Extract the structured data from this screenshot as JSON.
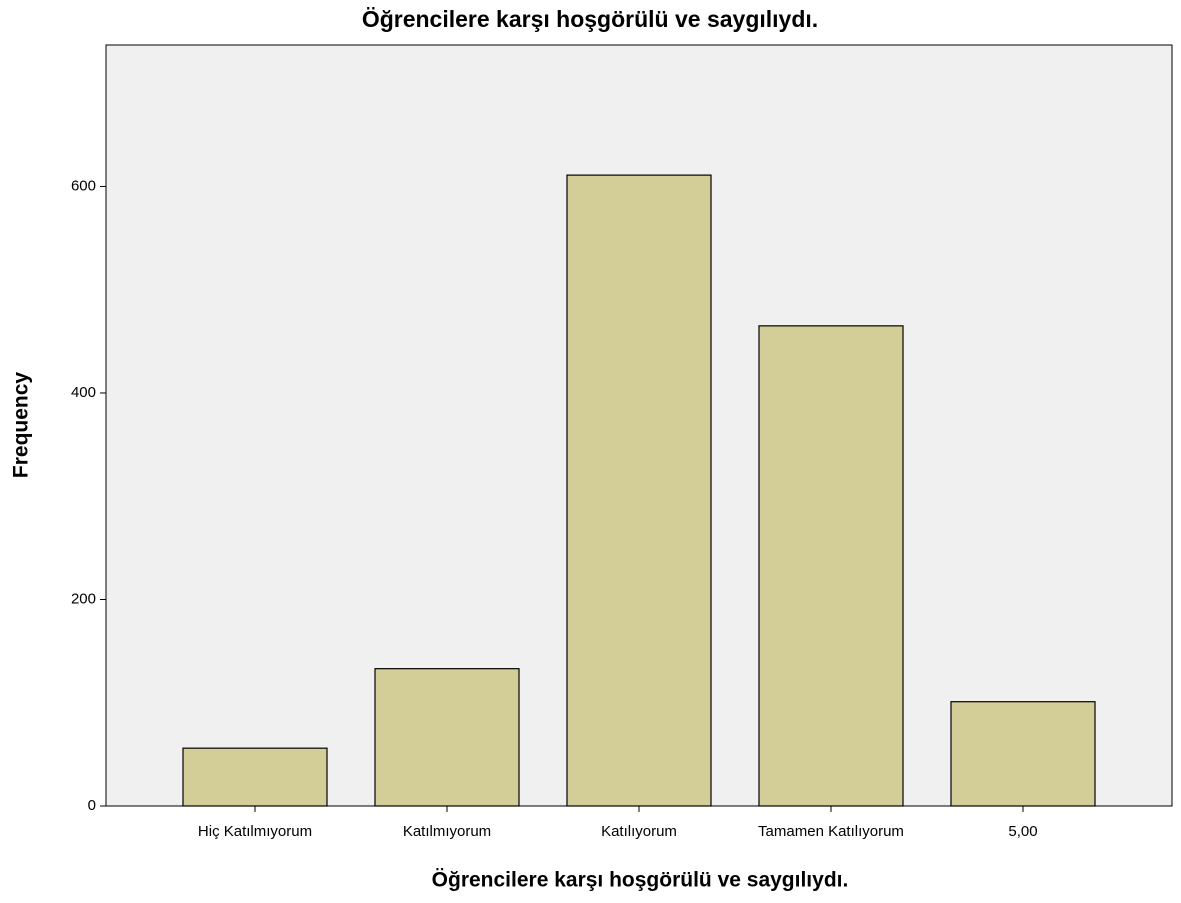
{
  "chart_data": {
    "type": "bar",
    "title": "Öğrencilere karşı hoşgörülü ve saygılıydı.",
    "x_label": "Öğrencilere karşı hoşgörülü ve saygılıydı.",
    "y_label": "Frequency",
    "categories": [
      "Hiç Katılmıyorum",
      "Katılmıyorum",
      "Katılıyorum",
      "Tamamen Katılıyorum",
      "5,00"
    ],
    "values": [
      56,
      133,
      611,
      465,
      101
    ],
    "color": "#d3ce97",
    "ylim": [
      0,
      737
    ],
    "yticks": [
      0,
      200,
      400,
      600
    ],
    "grid": false
  }
}
